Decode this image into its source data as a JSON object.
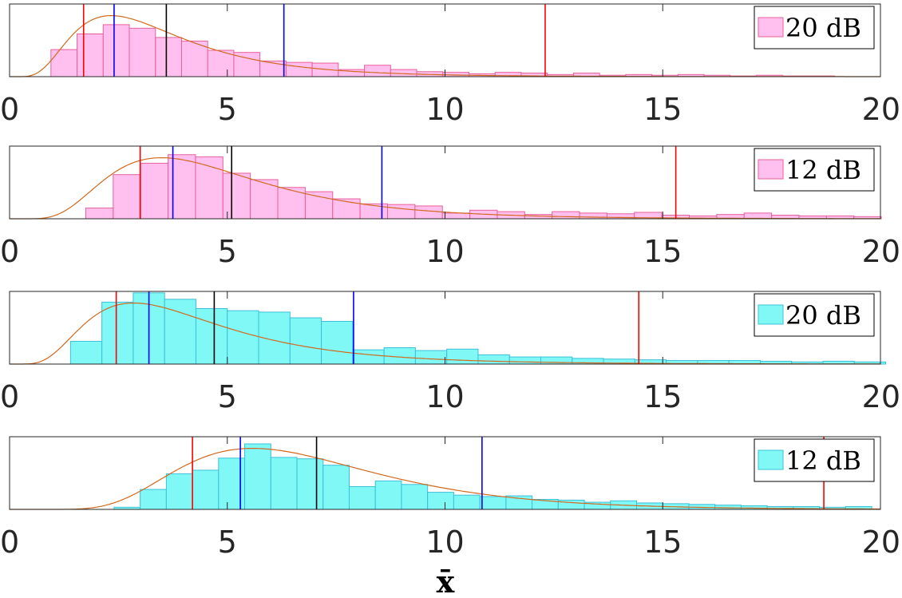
{
  "chart_data": [
    {
      "type": "bar",
      "legend": "20 dB",
      "color": "#ffc0ef",
      "edge": "#e8609a",
      "xlim": [
        0,
        20
      ],
      "bin_width": 0.6,
      "bins": [
        {
          "x0": 0.95,
          "h": 0.38
        },
        {
          "x0": 1.55,
          "h": 0.6
        },
        {
          "x0": 2.15,
          "h": 0.73
        },
        {
          "x0": 2.75,
          "h": 0.68
        },
        {
          "x0": 3.35,
          "h": 0.55
        },
        {
          "x0": 3.95,
          "h": 0.5
        },
        {
          "x0": 4.55,
          "h": 0.37
        },
        {
          "x0": 5.15,
          "h": 0.34
        },
        {
          "x0": 5.75,
          "h": 0.22
        },
        {
          "x0": 6.35,
          "h": 0.2
        },
        {
          "x0": 6.95,
          "h": 0.19
        },
        {
          "x0": 7.55,
          "h": 0.1
        },
        {
          "x0": 8.15,
          "h": 0.16
        },
        {
          "x0": 8.75,
          "h": 0.1
        },
        {
          "x0": 9.35,
          "h": 0.07
        },
        {
          "x0": 9.95,
          "h": 0.06
        },
        {
          "x0": 10.55,
          "h": 0.04
        },
        {
          "x0": 11.15,
          "h": 0.06
        },
        {
          "x0": 11.75,
          "h": 0.05
        },
        {
          "x0": 12.35,
          "h": 0.03
        },
        {
          "x0": 12.95,
          "h": 0.05
        },
        {
          "x0": 13.55,
          "h": 0.02
        },
        {
          "x0": 14.15,
          "h": 0.03
        },
        {
          "x0": 14.75,
          "h": 0.02
        },
        {
          "x0": 15.35,
          "h": 0.03
        },
        {
          "x0": 15.95,
          "h": 0.02
        },
        {
          "x0": 16.55,
          "h": 0.01
        },
        {
          "x0": 17.15,
          "h": 0.02
        },
        {
          "x0": 17.75,
          "h": 0.01
        },
        {
          "x0": 18.35,
          "h": 0.01
        }
      ],
      "fit": {
        "mu": 1.15,
        "sigma": 0.55
      },
      "vlines": [
        {
          "x": 1.7,
          "color": "#ff0000"
        },
        {
          "x": 2.4,
          "color": "#0000ff"
        },
        {
          "x": 3.6,
          "color": "#000000"
        },
        {
          "x": 6.3,
          "color": "#0000ff"
        },
        {
          "x": 12.3,
          "color": "#ff0000"
        }
      ]
    },
    {
      "type": "bar",
      "legend": "12 dB",
      "color": "#ffc0ef",
      "edge": "#e8609a",
      "xlim": [
        0,
        20
      ],
      "bin_width": 0.63,
      "bins": [
        {
          "x0": 1.75,
          "h": 0.15
        },
        {
          "x0": 2.38,
          "h": 0.62
        },
        {
          "x0": 3.01,
          "h": 0.78
        },
        {
          "x0": 3.64,
          "h": 0.9
        },
        {
          "x0": 4.27,
          "h": 0.87
        },
        {
          "x0": 4.9,
          "h": 0.64
        },
        {
          "x0": 5.53,
          "h": 0.55
        },
        {
          "x0": 6.16,
          "h": 0.44
        },
        {
          "x0": 6.79,
          "h": 0.38
        },
        {
          "x0": 7.42,
          "h": 0.28
        },
        {
          "x0": 8.05,
          "h": 0.21
        },
        {
          "x0": 8.68,
          "h": 0.2
        },
        {
          "x0": 9.31,
          "h": 0.18
        },
        {
          "x0": 9.94,
          "h": 0.08
        },
        {
          "x0": 10.57,
          "h": 0.12
        },
        {
          "x0": 11.2,
          "h": 0.1
        },
        {
          "x0": 11.83,
          "h": 0.06
        },
        {
          "x0": 12.46,
          "h": 0.1
        },
        {
          "x0": 13.09,
          "h": 0.08
        },
        {
          "x0": 13.72,
          "h": 0.07
        },
        {
          "x0": 14.35,
          "h": 0.09
        },
        {
          "x0": 14.98,
          "h": 0.05
        },
        {
          "x0": 15.61,
          "h": 0.04
        },
        {
          "x0": 16.24,
          "h": 0.06
        },
        {
          "x0": 16.87,
          "h": 0.08
        },
        {
          "x0": 17.5,
          "h": 0.05
        },
        {
          "x0": 18.13,
          "h": 0.04
        },
        {
          "x0": 18.76,
          "h": 0.04
        },
        {
          "x0": 19.39,
          "h": 0.03
        }
      ],
      "fit": {
        "mu": 1.5,
        "sigma": 0.5
      },
      "vlines": [
        {
          "x": 3.0,
          "color": "#ff0000"
        },
        {
          "x": 3.75,
          "color": "#0000ff"
        },
        {
          "x": 5.1,
          "color": "#000000"
        },
        {
          "x": 8.55,
          "color": "#0000ff"
        },
        {
          "x": 15.3,
          "color": "#ff0000"
        }
      ]
    },
    {
      "type": "bar",
      "legend": "20 dB",
      "color": "#7ff8f6",
      "edge": "#3cbfd8",
      "xlim": [
        0,
        20
      ],
      "bin_width": 0.72,
      "bins": [
        {
          "x0": 1.4,
          "h": 0.32
        },
        {
          "x0": 2.12,
          "h": 0.87
        },
        {
          "x0": 2.84,
          "h": 1.0
        },
        {
          "x0": 3.56,
          "h": 0.91
        },
        {
          "x0": 4.28,
          "h": 0.78
        },
        {
          "x0": 5.0,
          "h": 0.75
        },
        {
          "x0": 5.72,
          "h": 0.73
        },
        {
          "x0": 6.44,
          "h": 0.65
        },
        {
          "x0": 7.16,
          "h": 0.6
        },
        {
          "x0": 7.88,
          "h": 0.2
        },
        {
          "x0": 8.6,
          "h": 0.23
        },
        {
          "x0": 9.32,
          "h": 0.19
        },
        {
          "x0": 10.04,
          "h": 0.21
        },
        {
          "x0": 10.76,
          "h": 0.13
        },
        {
          "x0": 11.48,
          "h": 0.1
        },
        {
          "x0": 12.2,
          "h": 0.1
        },
        {
          "x0": 12.92,
          "h": 0.08
        },
        {
          "x0": 13.64,
          "h": 0.07
        },
        {
          "x0": 14.36,
          "h": 0.06
        },
        {
          "x0": 15.08,
          "h": 0.05
        },
        {
          "x0": 15.8,
          "h": 0.05
        },
        {
          "x0": 16.52,
          "h": 0.05
        },
        {
          "x0": 17.24,
          "h": 0.04
        },
        {
          "x0": 17.96,
          "h": 0.03
        },
        {
          "x0": 18.68,
          "h": 0.04
        },
        {
          "x0": 19.4,
          "h": 0.03
        }
      ],
      "fit": {
        "mu": 1.35,
        "sigma": 0.55
      },
      "vlines": [
        {
          "x": 2.45,
          "color": "#ff0000"
        },
        {
          "x": 3.2,
          "color": "#0000ff"
        },
        {
          "x": 4.7,
          "color": "#000000"
        },
        {
          "x": 7.9,
          "color": "#0000ff"
        },
        {
          "x": 14.45,
          "color": "#ff0000"
        }
      ]
    },
    {
      "type": "bar",
      "legend": "12 dB",
      "color": "#7ff8f6",
      "edge": "#3cbfd8",
      "xlim": [
        0,
        20
      ],
      "bin_width": 0.6,
      "bins": [
        {
          "x0": 2.4,
          "h": 0.03
        },
        {
          "x0": 3.0,
          "h": 0.28
        },
        {
          "x0": 3.6,
          "h": 0.5
        },
        {
          "x0": 4.2,
          "h": 0.55
        },
        {
          "x0": 4.8,
          "h": 0.72
        },
        {
          "x0": 5.4,
          "h": 0.92
        },
        {
          "x0": 6.0,
          "h": 0.73
        },
        {
          "x0": 6.6,
          "h": 0.71
        },
        {
          "x0": 7.2,
          "h": 0.62
        },
        {
          "x0": 7.8,
          "h": 0.32
        },
        {
          "x0": 8.4,
          "h": 0.4
        },
        {
          "x0": 9.0,
          "h": 0.35
        },
        {
          "x0": 9.6,
          "h": 0.24
        },
        {
          "x0": 10.2,
          "h": 0.2
        },
        {
          "x0": 10.8,
          "h": 0.18
        },
        {
          "x0": 11.4,
          "h": 0.19
        },
        {
          "x0": 12.0,
          "h": 0.14
        },
        {
          "x0": 12.6,
          "h": 0.13
        },
        {
          "x0": 13.2,
          "h": 0.1
        },
        {
          "x0": 13.8,
          "h": 0.12
        },
        {
          "x0": 14.4,
          "h": 0.09
        },
        {
          "x0": 15.0,
          "h": 0.08
        },
        {
          "x0": 15.6,
          "h": 0.07
        },
        {
          "x0": 16.2,
          "h": 0.06
        },
        {
          "x0": 16.8,
          "h": 0.05
        },
        {
          "x0": 17.4,
          "h": 0.04
        },
        {
          "x0": 18.0,
          "h": 0.04
        },
        {
          "x0": 18.6,
          "h": 0.03
        },
        {
          "x0": 19.2,
          "h": 0.04
        }
      ],
      "fit": {
        "mu": 1.88,
        "sigma": 0.4
      },
      "vlines": [
        {
          "x": 4.2,
          "color": "#ff0000"
        },
        {
          "x": 5.3,
          "color": "#0000ff"
        },
        {
          "x": 7.05,
          "color": "#000000"
        },
        {
          "x": 10.85,
          "color": "#0000ff"
        },
        {
          "x": 18.7,
          "color": "#ff0000"
        }
      ]
    }
  ],
  "axes": {
    "xticks": [
      0,
      5,
      10,
      15,
      20
    ],
    "xticklabels": [
      "0",
      "5",
      "10",
      "15",
      "20"
    ],
    "xlabel": "x̄"
  },
  "style": {
    "fit_line_color": "#d2691e",
    "axis_color": "#262626"
  }
}
